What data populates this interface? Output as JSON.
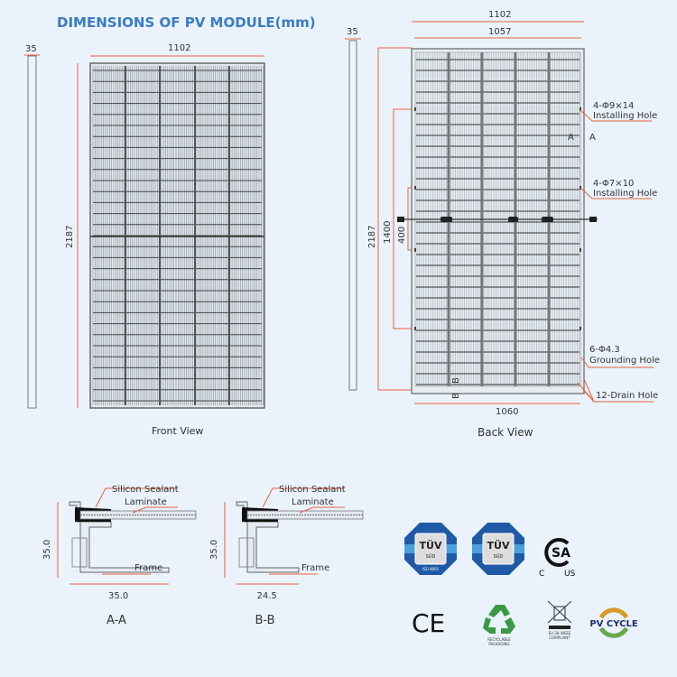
{
  "title": "DIMENSIONS OF PV MODULE(mm)",
  "front_view": {
    "label": "Front View",
    "thickness": "35",
    "width": "1102",
    "height": "2187"
  },
  "back_view": {
    "label": "Back View",
    "thickness": "35",
    "width_outer": "1102",
    "width_inner": "1057",
    "width_bottom": "1060",
    "height": "2187",
    "hole_spacing_1": "1400",
    "hole_spacing_2": "400",
    "section_a": "A",
    "section_b": "B",
    "callouts": [
      {
        "line1": "4-Φ9×14",
        "line2": "Installing Hole"
      },
      {
        "line1": "4-Φ7×10",
        "line2": "Installing Hole"
      },
      {
        "line1": "6-Φ4.3",
        "line2": "Grounding Hole"
      },
      {
        "line1": "12-Drain Hole",
        "line2": ""
      }
    ]
  },
  "sections": [
    {
      "name": "A-A",
      "sealant": "Silicon Sealant",
      "laminate": "Laminate",
      "frame": "Frame",
      "height": "35.0",
      "width": "35.0"
    },
    {
      "name": "B-B",
      "sealant": "Silicon Sealant",
      "laminate": "Laminate",
      "frame": "Frame",
      "height": "35.0",
      "width": "24.5"
    }
  ],
  "certifications": {
    "tuv1": {
      "brand": "TÜV",
      "sub": "SÜD",
      "note": "ISO 9001"
    },
    "tuv2": {
      "brand": "TÜV",
      "sub": "SÜD"
    },
    "csa": {
      "left": "C",
      "right": "US"
    },
    "ce": "CE",
    "recycle": {
      "line1": "RECYCLABLE",
      "line2": "PACKAGING"
    },
    "weee": {
      "line1": "EU-28 WEEE",
      "line2": "COMPLIANT"
    },
    "pvcycle": "PV CYCLE"
  },
  "colors": {
    "accent": "#3a7cc3",
    "dimension": "#e8603c",
    "background": "#eaf3fb",
    "recycle": "#3a9a45",
    "pvcycle_orange": "#d99a2b",
    "pvcycle_green": "#6aa84f"
  }
}
